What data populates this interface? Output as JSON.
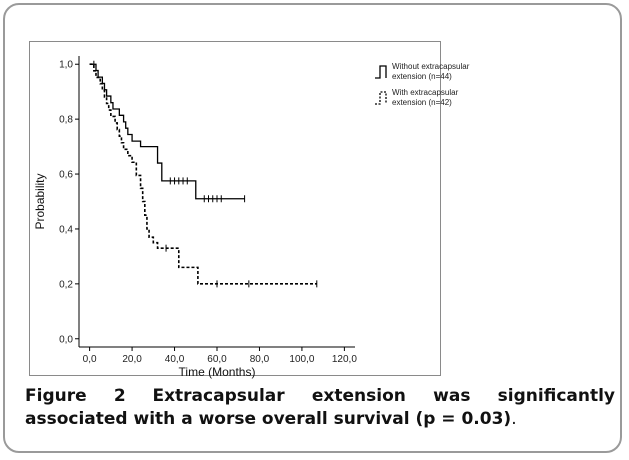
{
  "caption": {
    "label": "Figure 2",
    "text": "Extracapsular extension was significantly associated with a worse overall survival (p = 0.03)",
    "end": "."
  },
  "chart_data": {
    "type": "line",
    "subtype": "kaplan-meier-step",
    "xlabel": "Time (Months)",
    "ylabel": "Probability",
    "xlim": [
      -5,
      125
    ],
    "ylim": [
      -0.03,
      1.03
    ],
    "xticks": [
      0,
      20,
      40,
      60,
      80,
      100,
      120
    ],
    "xtick_labels": [
      "0,0",
      "20,0",
      "40,0",
      "60,0",
      "80,0",
      "100,0",
      "120,0"
    ],
    "yticks": [
      0,
      0.2,
      0.4,
      0.6,
      0.8,
      1.0
    ],
    "ytick_labels": [
      "0,0",
      "0,2",
      "0,4",
      "0,6",
      "0,8",
      "1,0"
    ],
    "grid": false,
    "legend_position": "top-right-outside",
    "series": [
      {
        "name": "Without extracapsular extension (n=44)",
        "style": "solid",
        "color": "#000000",
        "x": [
          0,
          3,
          4,
          6,
          7,
          8,
          10,
          11,
          14,
          16,
          17,
          18,
          20,
          24,
          32,
          34,
          50,
          73
        ],
        "y": [
          1.0,
          0.977,
          0.953,
          0.93,
          0.907,
          0.884,
          0.86,
          0.837,
          0.814,
          0.79,
          0.767,
          0.744,
          0.72,
          0.7,
          0.64,
          0.575,
          0.51,
          0.51
        ],
        "censored": [
          [
            2,
            1.0
          ],
          [
            38,
            0.575
          ],
          [
            40,
            0.575
          ],
          [
            42,
            0.575
          ],
          [
            44,
            0.575
          ],
          [
            46,
            0.575
          ],
          [
            54,
            0.51
          ],
          [
            56,
            0.51
          ],
          [
            58,
            0.51
          ],
          [
            60,
            0.51
          ],
          [
            62,
            0.51
          ],
          [
            73,
            0.51
          ]
        ]
      },
      {
        "name": "With extracapsular extension (n=42)",
        "style": "dashed",
        "color": "#000000",
        "x": [
          0,
          2,
          3,
          5,
          6,
          7,
          8,
          9,
          10,
          12,
          13,
          14,
          15,
          16,
          18,
          20,
          22,
          24,
          25,
          26,
          27,
          28,
          30,
          32,
          42,
          48,
          51,
          107
        ],
        "y": [
          1.0,
          0.976,
          0.952,
          0.929,
          0.905,
          0.881,
          0.857,
          0.833,
          0.81,
          0.786,
          0.762,
          0.738,
          0.714,
          0.69,
          0.667,
          0.643,
          0.595,
          0.548,
          0.5,
          0.45,
          0.4,
          0.37,
          0.35,
          0.33,
          0.26,
          0.26,
          0.2,
          0.2
        ],
        "censored": [
          [
            36,
            0.33
          ],
          [
            60,
            0.2
          ],
          [
            75,
            0.2
          ],
          [
            107,
            0.2
          ]
        ]
      }
    ]
  }
}
